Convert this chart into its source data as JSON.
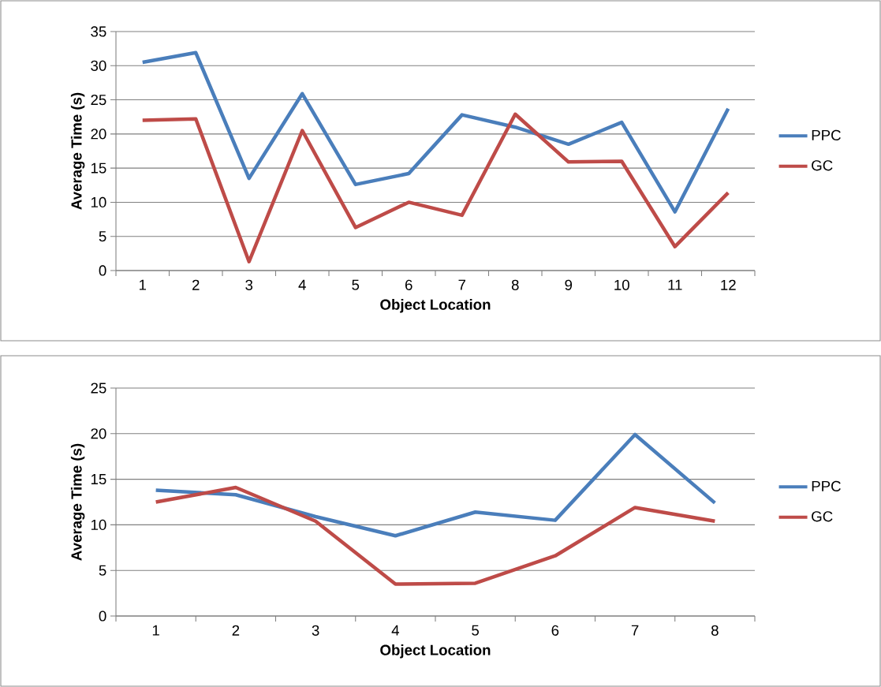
{
  "chart_data": [
    {
      "type": "line",
      "xlabel": "Object Location",
      "ylabel": "Average Time (s)",
      "categories": [
        "1",
        "2",
        "3",
        "4",
        "5",
        "6",
        "7",
        "8",
        "9",
        "10",
        "11",
        "12"
      ],
      "series": [
        {
          "name": "PPC",
          "color": "#4a7ebb",
          "values": [
            30.5,
            31.9,
            13.5,
            25.9,
            12.6,
            14.2,
            22.8,
            21.0,
            18.5,
            21.7,
            8.6,
            23.7
          ]
        },
        {
          "name": "GC",
          "color": "#be4b48",
          "values": [
            22.0,
            22.2,
            1.3,
            20.5,
            6.3,
            10.0,
            8.1,
            22.9,
            15.9,
            16.0,
            3.5,
            11.4
          ]
        }
      ],
      "ylim": [
        0,
        35
      ],
      "yticks": [
        0,
        5,
        10,
        15,
        20,
        25,
        30,
        35
      ],
      "grid": "y",
      "legend": "right"
    },
    {
      "type": "line",
      "xlabel": "Object Location",
      "ylabel": "Average Time (s)",
      "categories": [
        "1",
        "2",
        "3",
        "4",
        "5",
        "6",
        "7",
        "8"
      ],
      "series": [
        {
          "name": "PPC",
          "color": "#4a7ebb",
          "values": [
            13.8,
            13.3,
            10.9,
            8.8,
            11.4,
            10.5,
            19.9,
            12.4
          ]
        },
        {
          "name": "GC",
          "color": "#be4b48",
          "values": [
            12.5,
            14.1,
            10.4,
            3.5,
            3.6,
            6.6,
            11.9,
            10.4
          ]
        }
      ],
      "ylim": [
        0,
        25
      ],
      "yticks": [
        0,
        5,
        10,
        15,
        20,
        25
      ],
      "grid": "y",
      "legend": "right"
    }
  ]
}
